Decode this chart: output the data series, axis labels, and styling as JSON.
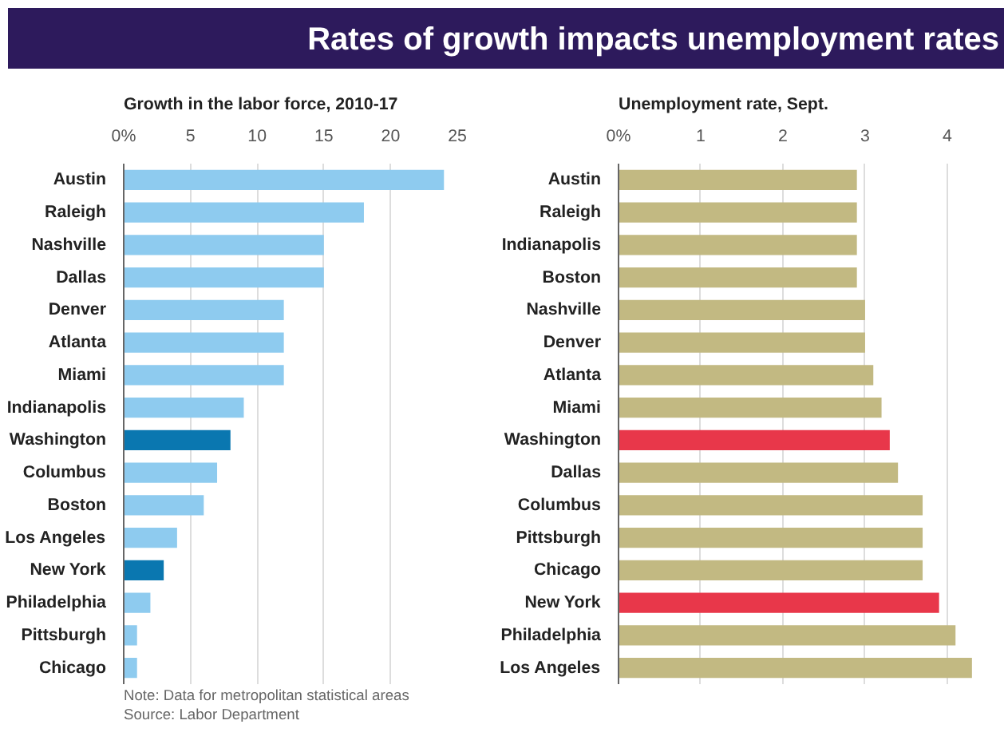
{
  "chart_data": [
    {
      "type": "bar",
      "orientation": "horizontal",
      "title": "Rates of growth impacts unemployment rates",
      "subtitle": "Growth in the labor force, 2010-17",
      "categories": [
        "Austin",
        "Raleigh",
        "Nashville",
        "Dallas",
        "Denver",
        "Atlanta",
        "Miami",
        "Indianapolis",
        "Washington",
        "Columbus",
        "Boston",
        "Los Angeles",
        "New York",
        "Philadelphia",
        "Pittsburgh",
        "Chicago"
      ],
      "values": [
        24,
        18,
        15,
        15,
        12,
        12,
        12,
        9,
        8,
        7,
        6,
        4,
        3,
        2,
        1,
        1
      ],
      "colors": [
        "#8ecbef",
        "#8ecbef",
        "#8ecbef",
        "#8ecbef",
        "#8ecbef",
        "#8ecbef",
        "#8ecbef",
        "#8ecbef",
        "#0a77b0",
        "#8ecbef",
        "#8ecbef",
        "#8ecbef",
        "#0a77b0",
        "#8ecbef",
        "#8ecbef",
        "#8ecbef"
      ],
      "xlim": [
        0,
        25
      ],
      "xticks": [
        {
          "value": 0,
          "label": "0%"
        },
        5,
        10,
        15,
        20,
        25
      ],
      "grid": "x",
      "annotations": [
        "Note: Data for metropolitan statistical areas",
        "Source: Labor Department"
      ]
    },
    {
      "type": "bar",
      "orientation": "horizontal",
      "subtitle": "Unemployment rate, Sept.",
      "categories": [
        "Austin",
        "Raleigh",
        "Indianapolis",
        "Boston",
        "Nashville",
        "Denver",
        "Atlanta",
        "Miami",
        "Washington",
        "Dallas",
        "Columbus",
        "Pittsburgh",
        "Chicago",
        "New York",
        "Philadelphia",
        "Los Angeles"
      ],
      "values": [
        2.9,
        2.9,
        2.9,
        2.9,
        3.0,
        3.0,
        3.1,
        3.2,
        3.3,
        3.4,
        3.7,
        3.7,
        3.7,
        3.9,
        4.1,
        4.3
      ],
      "colors": [
        "#c2b982",
        "#c2b982",
        "#c2b982",
        "#c2b982",
        "#c2b982",
        "#c2b982",
        "#c2b982",
        "#c2b982",
        "#e8374a",
        "#c2b982",
        "#c2b982",
        "#c2b982",
        "#c2b982",
        "#e8374a",
        "#c2b982",
        "#c2b982"
      ],
      "xlim": [
        0,
        4.35
      ],
      "xticks": [
        {
          "value": 0,
          "label": "0%"
        },
        1,
        2,
        3,
        4
      ],
      "grid": "x"
    }
  ]
}
